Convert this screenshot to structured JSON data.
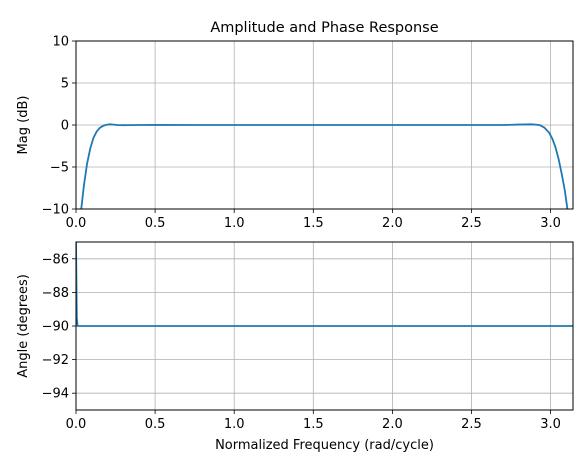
{
  "chart_data": [
    {
      "type": "line",
      "title": "Amplitude and Phase Response",
      "xlabel": "",
      "ylabel": "Mag (dB)",
      "xlim": [
        0,
        3.14159
      ],
      "ylim": [
        -10,
        10
      ],
      "xticks": [
        0.0,
        0.5,
        1.0,
        1.5,
        2.0,
        2.5,
        3.0
      ],
      "xtick_labels": [
        "0.0",
        "0.5",
        "1.0",
        "1.5",
        "2.0",
        "2.5",
        "3.0"
      ],
      "yticks": [
        10,
        5,
        0,
        -5,
        -10
      ],
      "ytick_labels": [
        "10",
        "5",
        "0",
        "−5",
        "−10"
      ],
      "grid": true,
      "color": "#1f77b4",
      "series": [
        {
          "x": [
            0.03,
            0.05,
            0.07,
            0.09,
            0.11,
            0.13,
            0.15,
            0.17,
            0.19,
            0.21,
            0.23,
            0.26,
            0.3,
            0.4,
            0.5,
            0.75,
            1.0,
            1.5,
            2.0,
            2.5,
            2.7,
            2.8,
            2.88,
            2.93,
            2.96,
            2.99,
            3.01,
            3.03,
            3.05,
            3.07,
            3.09,
            3.11
          ],
          "y": [
            -10.5,
            -7.2,
            -4.6,
            -2.8,
            -1.55,
            -0.8,
            -0.35,
            -0.12,
            0.02,
            0.08,
            0.06,
            0.0,
            -0.02,
            0.0,
            0.01,
            0.0,
            0.0,
            0.0,
            0.0,
            0.0,
            0.0,
            0.05,
            0.08,
            0.0,
            -0.3,
            -0.9,
            -1.6,
            -2.6,
            -4.0,
            -5.8,
            -7.8,
            -10.5
          ]
        }
      ]
    },
    {
      "type": "line",
      "title": "",
      "xlabel": "Normalized Frequency (rad/cycle)",
      "ylabel": "Angle (degrees)",
      "xlim": [
        0,
        3.14159
      ],
      "ylim": [
        -95,
        -85
      ],
      "xticks": [
        0.0,
        0.5,
        1.0,
        1.5,
        2.0,
        2.5,
        3.0
      ],
      "xtick_labels": [
        "0.0",
        "0.5",
        "1.0",
        "1.5",
        "2.0",
        "2.5",
        "3.0"
      ],
      "yticks": [
        -86,
        -88,
        -90,
        -92,
        -94
      ],
      "ytick_labels": [
        "−86",
        "−88",
        "−90",
        "−92",
        "−94"
      ],
      "grid": true,
      "color": "#1f77b4",
      "series": [
        {
          "x": [
            0.0,
            0.005,
            0.01,
            3.14159
          ],
          "y": [
            -85,
            -89.5,
            -90,
            -90
          ]
        }
      ]
    }
  ]
}
